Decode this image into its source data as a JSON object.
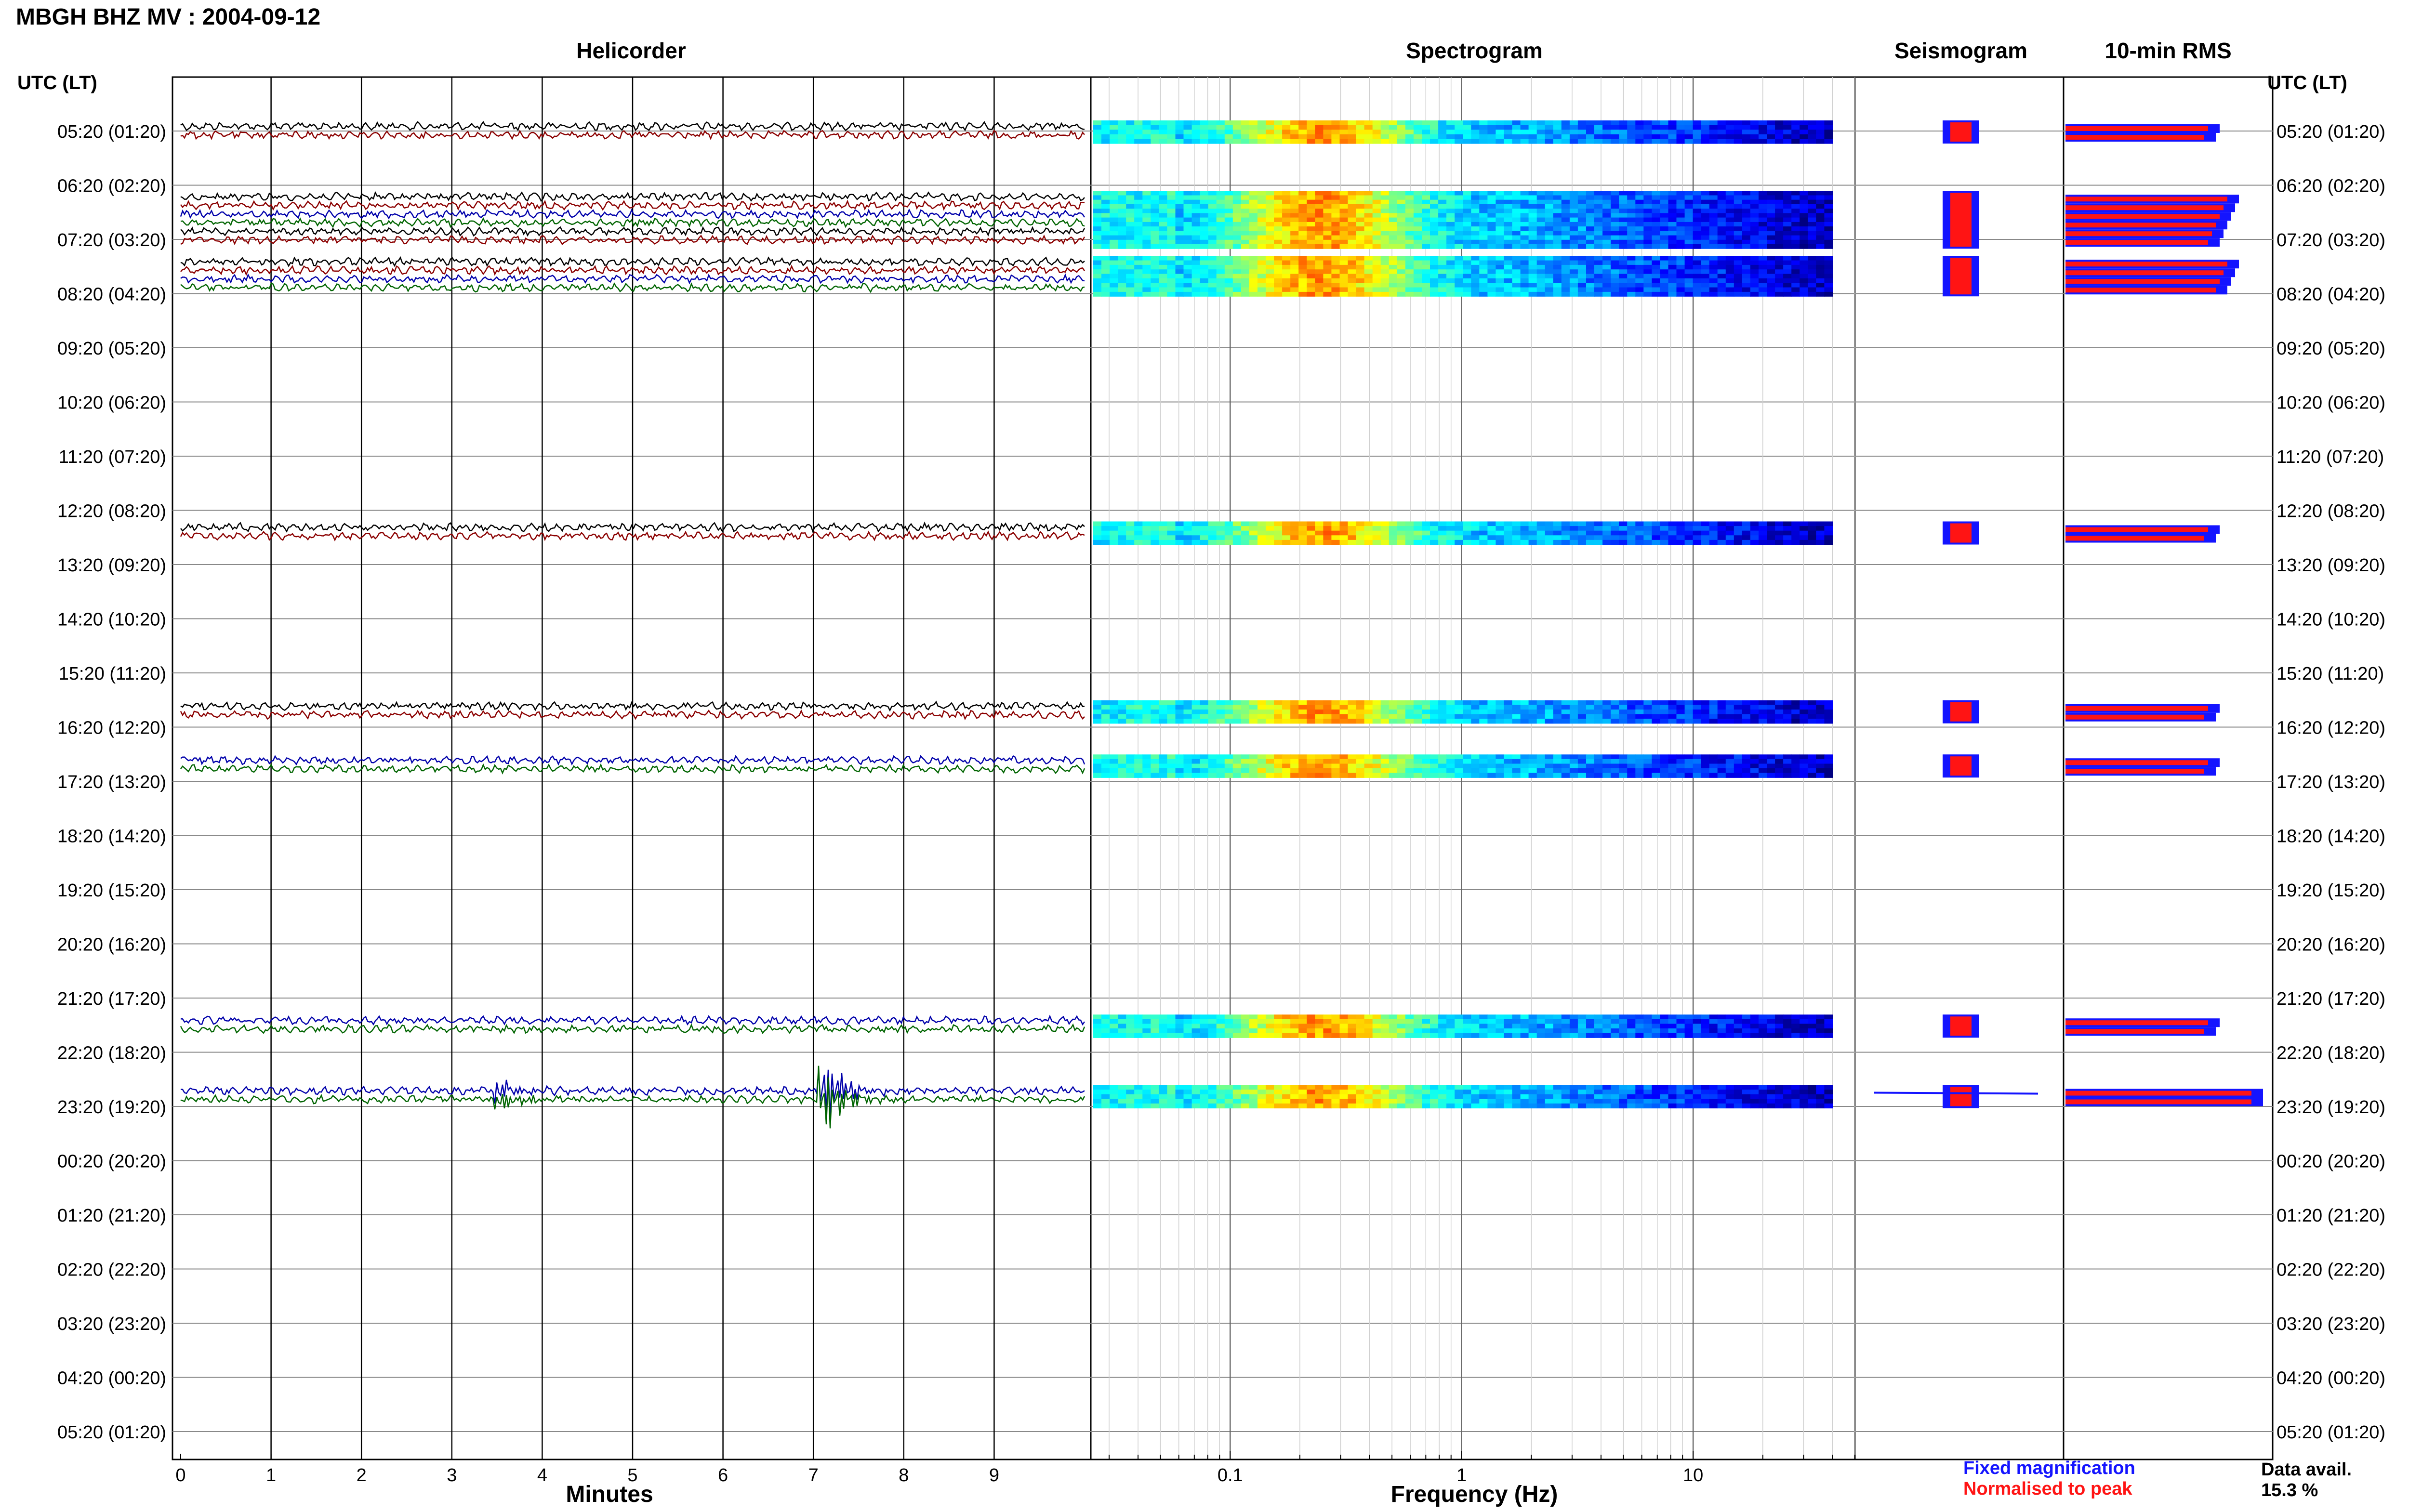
{
  "figure": {
    "title": "MBGH BHZ MV : 2004-09-12",
    "panels": {
      "helicorder": "Helicorder",
      "spectrogram": "Spectrogram",
      "seismogram": "Seismogram",
      "rms": "10-min RMS"
    },
    "axis_labels": {
      "left_time": "UTC (LT)",
      "right_time": "UTC (LT)",
      "helicorder_x": "Minutes",
      "spectrogram_x": "Frequency (Hz)"
    },
    "legend": {
      "fixed": "Fixed magnification",
      "normalised": "Normalised to peak"
    },
    "availability": {
      "label": "Data avail.",
      "value": "15.3 %"
    },
    "colors": {
      "fixed": "#1414ff",
      "normalised": "#ff1414",
      "trace_colors": [
        "#000000",
        "#8b0000",
        "#0000aa",
        "#006400"
      ],
      "gridline": "#000000"
    }
  },
  "chart_data": {
    "type": "heatmap",
    "station": "MBGH",
    "channel": "BHZ",
    "network": "MV",
    "date": "2004-09-12",
    "time_rows": [
      "05:20 (01:20)",
      "06:20 (02:20)",
      "07:20 (03:20)",
      "08:20 (04:20)",
      "09:20 (05:20)",
      "10:20 (06:20)",
      "11:20 (07:20)",
      "12:20 (08:20)",
      "13:20 (09:20)",
      "14:20 (10:20)",
      "15:20 (11:20)",
      "16:20 (12:20)",
      "17:20 (13:20)",
      "18:20 (14:20)",
      "19:20 (15:20)",
      "20:20 (16:20)",
      "21:20 (17:20)",
      "22:20 (18:20)",
      "23:20 (19:20)",
      "00:20 (20:20)",
      "01:20 (21:20)",
      "02:20 (22:20)",
      "03:20 (23:20)",
      "04:20 (00:20)",
      "05:20 (01:20)"
    ],
    "helicorder": {
      "xlabel": "Minutes",
      "xlim": [
        0,
        10
      ],
      "xticks": [
        0,
        1,
        2,
        3,
        4,
        5,
        6,
        7,
        8,
        9
      ],
      "rows": [
        {
          "hour": 0,
          "traces": 2,
          "start_trace": 0,
          "events": []
        },
        {
          "hour": 1.3,
          "traces": 6,
          "start_trace": 0,
          "events": []
        },
        {
          "hour": 2.5,
          "traces": 4,
          "start_trace": 0,
          "events": []
        },
        {
          "hour": 7.4,
          "traces": 2,
          "start_trace": 0,
          "events": []
        },
        {
          "hour": 10.7,
          "traces": 2,
          "start_trace": 0,
          "events": []
        },
        {
          "hour": 11.7,
          "traces": 2,
          "start_trace": 2,
          "events": []
        },
        {
          "hour": 16.5,
          "traces": 2,
          "start_trace": 2,
          "events": []
        },
        {
          "hour": 17.8,
          "traces": 2,
          "start_trace": 2,
          "events": [
            {
              "minute": 3.5,
              "amplitude": 0.4
            },
            {
              "minute": 7.1,
              "amplitude": 1.0
            }
          ]
        }
      ]
    },
    "spectrogram": {
      "xlabel": "Frequency (Hz)",
      "xscale": "log",
      "xlim": [
        0.025,
        50
      ],
      "xticks": [
        0.1,
        1,
        10
      ],
      "xtick_labels": [
        "0.1",
        "1",
        "10"
      ],
      "frequency_extent": [
        0.025,
        40
      ],
      "peak_frequency": 0.25
    },
    "rms": {
      "series": [
        {
          "name": "Fixed magnification",
          "color": "#1414ff"
        },
        {
          "name": "Normalised to peak",
          "color": "#ff1414"
        }
      ]
    },
    "data_availability_percent": 15.3
  }
}
